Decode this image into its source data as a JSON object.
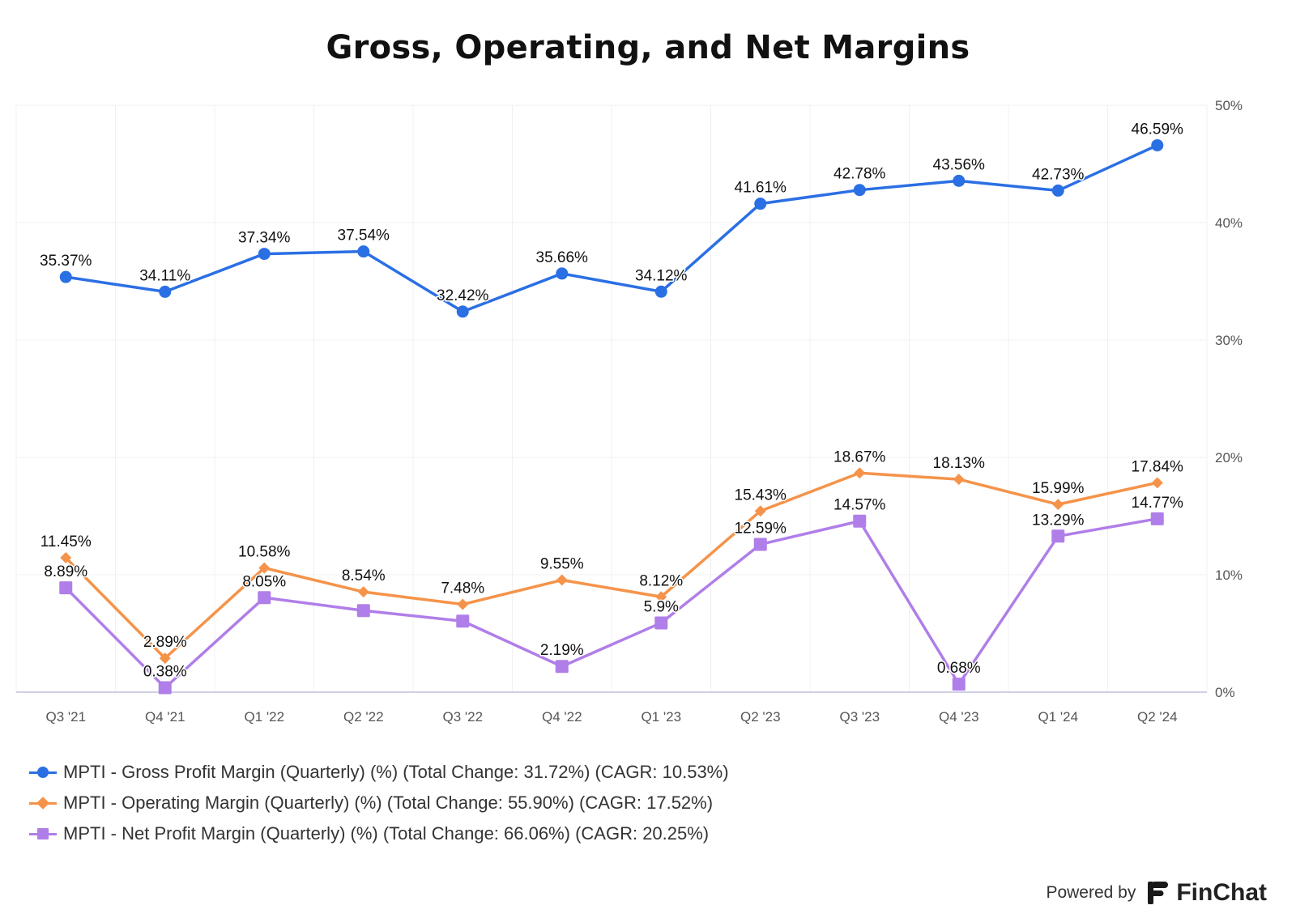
{
  "chart_data": {
    "type": "line",
    "title": "Gross, Operating, and Net Margins",
    "categories": [
      "Q3 '21",
      "Q4 '21",
      "Q1 '22",
      "Q2 '22",
      "Q3 '22",
      "Q4 '22",
      "Q1 '23",
      "Q2 '23",
      "Q3 '23",
      "Q4 '23",
      "Q1 '24",
      "Q2 '24"
    ],
    "y_ticks": [
      "0%",
      "10%",
      "20%",
      "30%",
      "40%",
      "50%"
    ],
    "ylim": [
      0,
      50
    ],
    "y_axis_side": "right",
    "grid": true,
    "legend_position": "bottom-left",
    "series": [
      {
        "name": "MPTI - Gross Profit Margin (Quarterly) (%) (Total Change: 31.72%) (CAGR: 10.53%)",
        "color": "#2b6fe4",
        "marker": "circle",
        "values": [
          35.37,
          34.11,
          37.34,
          37.54,
          32.42,
          35.66,
          34.12,
          41.61,
          42.78,
          43.56,
          42.73,
          46.59
        ],
        "labels": [
          "35.37%",
          "34.11%",
          "37.34%",
          "37.54%",
          "32.42%",
          "35.66%",
          "34.12%",
          "41.61%",
          "42.78%",
          "43.56%",
          "42.73%",
          "46.59%"
        ]
      },
      {
        "name": "MPTI - Operating Margin (Quarterly) (%) (Total Change: 55.90%) (CAGR: 17.52%)",
        "color": "#f5934a",
        "marker": "diamond",
        "values": [
          11.45,
          2.89,
          10.58,
          8.54,
          7.48,
          9.55,
          8.12,
          15.43,
          18.67,
          18.13,
          15.99,
          17.84
        ],
        "labels": [
          "11.45%",
          "2.89%",
          "10.58%",
          "8.54%",
          "7.48%",
          "9.55%",
          "8.12%",
          "15.43%",
          "18.67%",
          "18.13%",
          "15.99%",
          "17.84%"
        ]
      },
      {
        "name": "MPTI - Net Profit Margin (Quarterly) (%) (Total Change: 66.06%) (CAGR: 20.25%)",
        "color": "#b07ee8",
        "marker": "square",
        "values": [
          8.89,
          0.38,
          8.05,
          6.95,
          6.05,
          2.19,
          5.9,
          12.59,
          14.57,
          0.68,
          13.29,
          14.77
        ],
        "labels": [
          "8.89%",
          "0.38%",
          "8.05%",
          "",
          "",
          "2.19%",
          "5.9%",
          "12.59%",
          "14.57%",
          "0.68%",
          "13.29%",
          "14.77%"
        ]
      }
    ]
  },
  "branding": {
    "prefix": "Powered by",
    "name": "FinChat"
  }
}
